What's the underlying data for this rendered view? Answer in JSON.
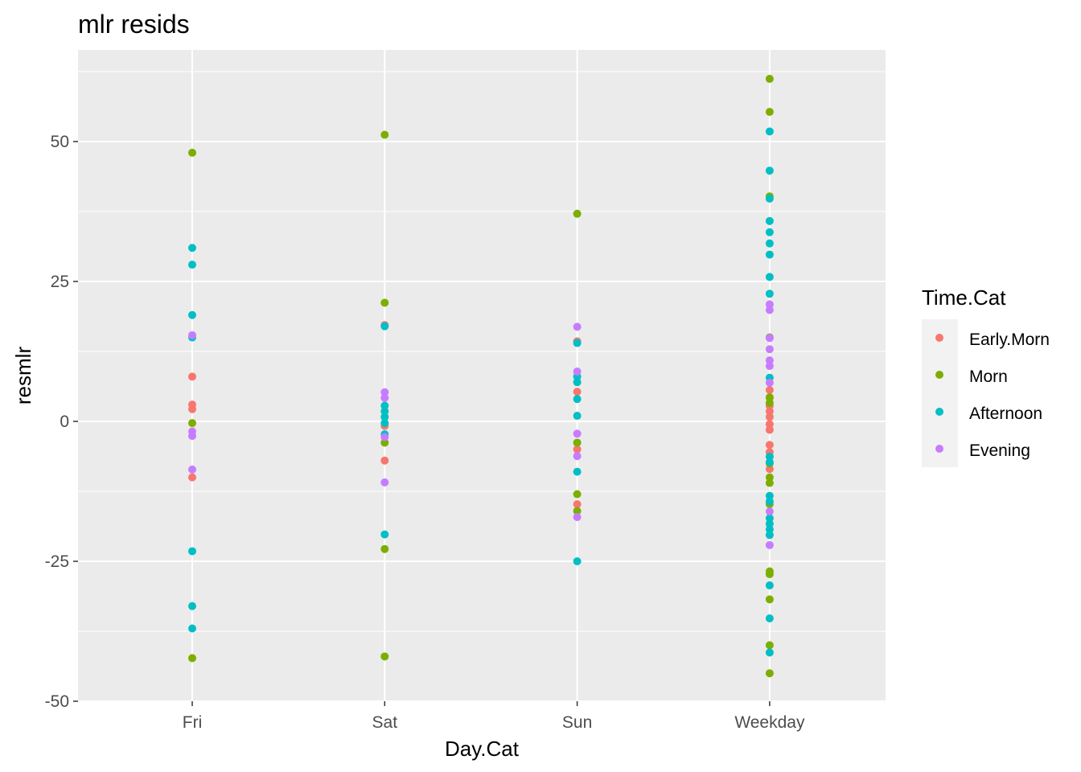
{
  "chart_data": {
    "type": "scatter",
    "title": "mlr resids",
    "xlabel": "Day.Cat",
    "ylabel": "resmlr",
    "categories": [
      "Fri",
      "Sat",
      "Sun",
      "Weekday"
    ],
    "ylim": [
      -50,
      63
    ],
    "yticks": [
      -50,
      -25,
      0,
      25,
      50
    ],
    "ytick_labels": [
      "-50",
      "-25",
      "0",
      "25",
      "50"
    ],
    "grid": true,
    "legend": {
      "title": "Time.Cat",
      "placement": "right"
    },
    "series": [
      {
        "name": "Early.Morn",
        "color": "#F8766D",
        "points": [
          {
            "x": "Fri",
            "y": 8
          },
          {
            "x": "Fri",
            "y": 3
          },
          {
            "x": "Fri",
            "y": 2.2
          },
          {
            "x": "Fri",
            "y": -10
          },
          {
            "x": "Sat",
            "y": 17.2
          },
          {
            "x": "Sat",
            "y": -0.8
          },
          {
            "x": "Sat",
            "y": -7
          },
          {
            "x": "Sun",
            "y": 14.3
          },
          {
            "x": "Sun",
            "y": 5.3
          },
          {
            "x": "Sun",
            "y": -5
          },
          {
            "x": "Sun",
            "y": -14.8
          },
          {
            "x": "Weekday",
            "y": 15
          },
          {
            "x": "Weekday",
            "y": 5.6
          },
          {
            "x": "Weekday",
            "y": 4.2
          },
          {
            "x": "Weekday",
            "y": 2.8
          },
          {
            "x": "Weekday",
            "y": 1.8
          },
          {
            "x": "Weekday",
            "y": 0.8
          },
          {
            "x": "Weekday",
            "y": -0.5
          },
          {
            "x": "Weekday",
            "y": -1.5
          },
          {
            "x": "Weekday",
            "y": -4.2
          },
          {
            "x": "Weekday",
            "y": -5.5
          },
          {
            "x": "Weekday",
            "y": -8.5
          }
        ]
      },
      {
        "name": "Morn",
        "color": "#7CAE00",
        "points": [
          {
            "x": "Fri",
            "y": 48
          },
          {
            "x": "Fri",
            "y": -0.3
          },
          {
            "x": "Fri",
            "y": -42.3
          },
          {
            "x": "Sat",
            "y": 51.2
          },
          {
            "x": "Sat",
            "y": 21.2
          },
          {
            "x": "Sat",
            "y": -3.8
          },
          {
            "x": "Sat",
            "y": -22.8
          },
          {
            "x": "Sat",
            "y": -42
          },
          {
            "x": "Sun",
            "y": 37.1
          },
          {
            "x": "Sun",
            "y": -3.8
          },
          {
            "x": "Sun",
            "y": -13
          },
          {
            "x": "Sun",
            "y": -16
          },
          {
            "x": "Weekday",
            "y": 61.2
          },
          {
            "x": "Weekday",
            "y": 55.3
          },
          {
            "x": "Weekday",
            "y": 40.2
          },
          {
            "x": "Weekday",
            "y": 15
          },
          {
            "x": "Weekday",
            "y": 4.3
          },
          {
            "x": "Weekday",
            "y": 3.3
          },
          {
            "x": "Weekday",
            "y": -7.5
          },
          {
            "x": "Weekday",
            "y": -10
          },
          {
            "x": "Weekday",
            "y": -11
          },
          {
            "x": "Weekday",
            "y": -14.8
          },
          {
            "x": "Weekday",
            "y": -26.8
          },
          {
            "x": "Weekday",
            "y": -27.3
          },
          {
            "x": "Weekday",
            "y": -31.8
          },
          {
            "x": "Weekday",
            "y": -40
          },
          {
            "x": "Weekday",
            "y": -45
          }
        ]
      },
      {
        "name": "Afternoon",
        "color": "#00BFC4",
        "points": [
          {
            "x": "Fri",
            "y": 31
          },
          {
            "x": "Fri",
            "y": 28
          },
          {
            "x": "Fri",
            "y": 19
          },
          {
            "x": "Fri",
            "y": 15
          },
          {
            "x": "Fri",
            "y": -23.2
          },
          {
            "x": "Fri",
            "y": -33
          },
          {
            "x": "Fri",
            "y": -37
          },
          {
            "x": "Sat",
            "y": 17
          },
          {
            "x": "Sat",
            "y": 2.8
          },
          {
            "x": "Sat",
            "y": 1.8
          },
          {
            "x": "Sat",
            "y": 0.8
          },
          {
            "x": "Sat",
            "y": -0.3
          },
          {
            "x": "Sat",
            "y": -2.3
          },
          {
            "x": "Sat",
            "y": -20.2
          },
          {
            "x": "Sun",
            "y": 14
          },
          {
            "x": "Sun",
            "y": 8
          },
          {
            "x": "Sun",
            "y": 7
          },
          {
            "x": "Sun",
            "y": 4
          },
          {
            "x": "Sun",
            "y": 1
          },
          {
            "x": "Sun",
            "y": -9
          },
          {
            "x": "Sun",
            "y": -25
          },
          {
            "x": "Weekday",
            "y": 51.8
          },
          {
            "x": "Weekday",
            "y": 44.8
          },
          {
            "x": "Weekday",
            "y": 39.8
          },
          {
            "x": "Weekday",
            "y": 35.8
          },
          {
            "x": "Weekday",
            "y": 33.8
          },
          {
            "x": "Weekday",
            "y": 31.8
          },
          {
            "x": "Weekday",
            "y": 29.8
          },
          {
            "x": "Weekday",
            "y": 25.8
          },
          {
            "x": "Weekday",
            "y": 22.8
          },
          {
            "x": "Weekday",
            "y": 7.8
          },
          {
            "x": "Weekday",
            "y": -6.3
          },
          {
            "x": "Weekday",
            "y": -7.3
          },
          {
            "x": "Weekday",
            "y": -13.3
          },
          {
            "x": "Weekday",
            "y": -14.3
          },
          {
            "x": "Weekday",
            "y": -17.3
          },
          {
            "x": "Weekday",
            "y": -18.3
          },
          {
            "x": "Weekday",
            "y": -19.3
          },
          {
            "x": "Weekday",
            "y": -20.3
          },
          {
            "x": "Weekday",
            "y": -29.3
          },
          {
            "x": "Weekday",
            "y": -35.2
          },
          {
            "x": "Weekday",
            "y": -41.3
          }
        ]
      },
      {
        "name": "Evening",
        "color": "#C77CFF",
        "points": [
          {
            "x": "Fri",
            "y": 15.4
          },
          {
            "x": "Fri",
            "y": -1.8
          },
          {
            "x": "Fri",
            "y": -2.6
          },
          {
            "x": "Fri",
            "y": -8.6
          },
          {
            "x": "Sat",
            "y": 5.2
          },
          {
            "x": "Sat",
            "y": 4.2
          },
          {
            "x": "Sat",
            "y": -2.8
          },
          {
            "x": "Sat",
            "y": -10.9
          },
          {
            "x": "Sun",
            "y": 16.9
          },
          {
            "x": "Sun",
            "y": 8.9
          },
          {
            "x": "Sun",
            "y": -2.2
          },
          {
            "x": "Sun",
            "y": -6.2
          },
          {
            "x": "Sun",
            "y": -17.1
          },
          {
            "x": "Weekday",
            "y": 20.9
          },
          {
            "x": "Weekday",
            "y": 19.9
          },
          {
            "x": "Weekday",
            "y": 14.9
          },
          {
            "x": "Weekday",
            "y": 12.9
          },
          {
            "x": "Weekday",
            "y": 10.9
          },
          {
            "x": "Weekday",
            "y": 9.9
          },
          {
            "x": "Weekday",
            "y": 6.9
          },
          {
            "x": "Weekday",
            "y": -16.1
          },
          {
            "x": "Weekday",
            "y": -22.1
          }
        ]
      }
    ]
  }
}
